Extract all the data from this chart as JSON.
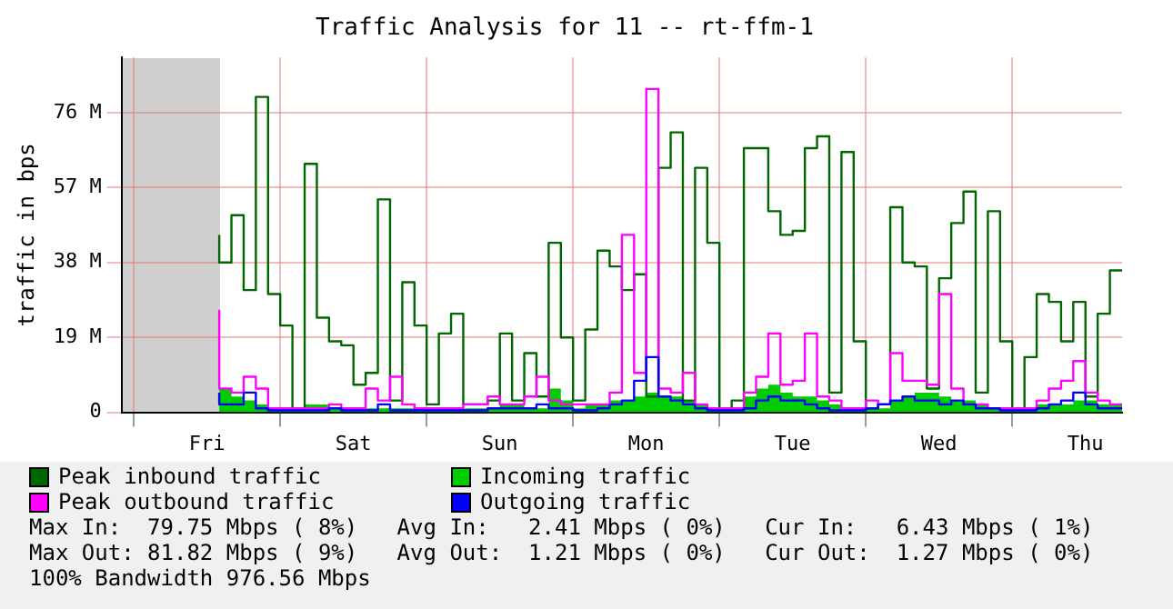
{
  "chart_data": {
    "type": "step",
    "title": "Traffic Analysis for 11 -- rt-ffm-1",
    "ylabel": "traffic in bps",
    "categories": [
      null,
      null,
      null,
      null,
      null,
      null,
      null,
      "Fri",
      null,
      null,
      null,
      null,
      null,
      null,
      null,
      null,
      null,
      null,
      null,
      "Sat",
      null,
      null,
      null,
      null,
      null,
      null,
      null,
      null,
      null,
      null,
      null,
      "Sun",
      null,
      null,
      null,
      null,
      null,
      null,
      null,
      null,
      null,
      null,
      null,
      "Mon",
      null,
      null,
      null,
      null,
      null,
      null,
      null,
      null,
      null,
      null,
      null,
      "Tue",
      null,
      null,
      null,
      null,
      null,
      null,
      null,
      null,
      null,
      null,
      null,
      "Wed",
      null,
      null,
      null,
      null,
      null,
      null,
      null,
      null,
      null,
      null,
      null,
      "Thu",
      null,
      null,
      null
    ],
    "ylim": [
      0,
      90
    ],
    "yticks": [
      {
        "value": 0,
        "label": "0"
      },
      {
        "value": 19,
        "label": "19 M"
      },
      {
        "value": 38,
        "label": "38 M"
      },
      {
        "value": 57,
        "label": "57 M"
      },
      {
        "value": 76,
        "label": "76 M"
      }
    ],
    "grid": true,
    "legend": "bottom",
    "marker": "none",
    "series": [
      {
        "name": "Incoming traffic",
        "type": "area",
        "color": "#00cc00",
        "values": [
          null,
          null,
          null,
          null,
          null,
          null,
          null,
          null,
          8,
          6,
          4,
          3,
          2,
          1,
          1,
          1,
          2,
          2,
          1,
          1,
          1,
          1,
          1,
          1,
          1,
          1,
          1,
          1,
          1,
          1,
          1,
          1,
          2,
          2,
          1,
          1,
          6,
          3,
          1,
          2,
          2,
          3,
          3,
          4,
          5,
          4,
          4,
          3,
          2,
          1,
          1,
          1,
          4,
          6,
          7,
          5,
          4,
          4,
          3,
          2,
          1,
          1,
          1,
          1,
          3,
          4,
          5,
          5,
          4,
          3,
          3,
          2,
          1,
          1,
          1,
          1,
          2,
          2,
          2,
          3,
          3,
          2,
          2
        ]
      },
      {
        "name": "Peak inbound traffic",
        "type": "step",
        "color": "#006600",
        "values": [
          null,
          null,
          null,
          null,
          null,
          null,
          null,
          null,
          45,
          38,
          50,
          31,
          80,
          30,
          22,
          1,
          63,
          24,
          18,
          17,
          7,
          10,
          54,
          3,
          33,
          22,
          2,
          20,
          25,
          2,
          2,
          3,
          20,
          3,
          15,
          4,
          43,
          19,
          3,
          21,
          41,
          37,
          31,
          35,
          4,
          62,
          71,
          3,
          62,
          43,
          1,
          3,
          67,
          67,
          51,
          45,
          46,
          67,
          70,
          5,
          66,
          18,
          1,
          2,
          52,
          38,
          37,
          6,
          34,
          48,
          56,
          5,
          51,
          18,
          1,
          14,
          30,
          28,
          18,
          28,
          4,
          25,
          36
        ]
      },
      {
        "name": "Peak outbound traffic",
        "type": "step",
        "color": "#ff00ff",
        "values": [
          null,
          null,
          null,
          null,
          null,
          null,
          null,
          null,
          26,
          6,
          5,
          9,
          6,
          1,
          1,
          1,
          1,
          1,
          2,
          1,
          1,
          6,
          3,
          9,
          2,
          1,
          1,
          1,
          1,
          2,
          2,
          4,
          2,
          2,
          4,
          9,
          3,
          2,
          2,
          2,
          2,
          5,
          45,
          10,
          82,
          6,
          5,
          10,
          2,
          1,
          1,
          1,
          5,
          9,
          20,
          7,
          8,
          20,
          4,
          3,
          1,
          1,
          3,
          2,
          15,
          8,
          8,
          7,
          30,
          6,
          2,
          2,
          1,
          1,
          1,
          1,
          3,
          6,
          8,
          13,
          5,
          3,
          2
        ]
      },
      {
        "name": "Outgoing traffic",
        "type": "step",
        "color": "#0000ff",
        "values": [
          null,
          null,
          null,
          null,
          null,
          null,
          null,
          null,
          5,
          2,
          2,
          5,
          1,
          0.5,
          0.5,
          0.5,
          0.5,
          0.5,
          1,
          0.5,
          0.5,
          0.5,
          2,
          0.5,
          0.5,
          0.5,
          0.5,
          0.5,
          0.5,
          0.5,
          0.5,
          1,
          1,
          1,
          1,
          2,
          1,
          1,
          0.5,
          0.5,
          1,
          2,
          3,
          8,
          14,
          4,
          3,
          2,
          1,
          0.5,
          0.5,
          0.5,
          1,
          3,
          4,
          3,
          3,
          2,
          1,
          0.5,
          0.5,
          0.5,
          1,
          2,
          3,
          4,
          3,
          3,
          2,
          3,
          2,
          1,
          1,
          0.5,
          0.5,
          0.5,
          1,
          2,
          3,
          5,
          2,
          1,
          1
        ]
      }
    ],
    "annotations": [
      "Max In:  79.75 Mbps ( 8%)   Avg In:   2.41 Mbps ( 0%)   Cur In:   6.43 Mbps ( 1%)",
      "Max Out: 81.82 Mbps ( 9%)   Avg Out:  1.21 Mbps ( 0%)   Cur Out:  1.27 Mbps ( 0%)",
      "100% Bandwidth 976.56 Mbps"
    ]
  }
}
